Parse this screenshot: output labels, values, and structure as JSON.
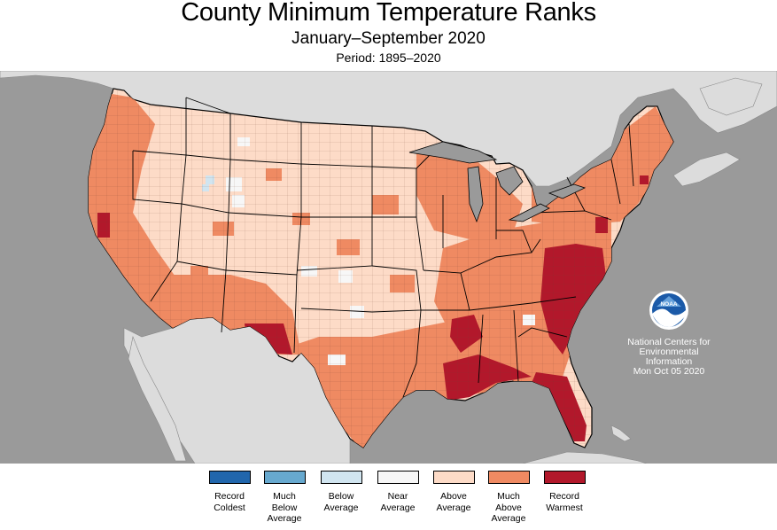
{
  "header": {
    "title": "County Minimum Temperature Ranks",
    "subtitle": "January–September 2020",
    "period": "Period: 1895–2020"
  },
  "logo": {
    "name": "noaa-logo",
    "text": "NOAA"
  },
  "credit": {
    "line1": "National Centers for",
    "line2": "Environmental",
    "line3": "Information",
    "line4": "Mon Oct 05 2020"
  },
  "colors": {
    "ocean": "#9a9a9a",
    "neighbor_land": "#dcdcdc",
    "state_border": "#000000",
    "county_border": "#555555"
  },
  "legend": [
    {
      "label": "Record\nColdest",
      "color": "#2166ac"
    },
    {
      "label": "Much\nBelow\nAverage",
      "color": "#67a9cf"
    },
    {
      "label": "Below\nAverage",
      "color": "#d1e5f0"
    },
    {
      "label": "Near\nAverage",
      "color": "#f7f7f7"
    },
    {
      "label": "Above\nAverage",
      "color": "#fddbc7"
    },
    {
      "label": "Much\nAbove\nAverage",
      "color": "#ef8a62"
    },
    {
      "label": "Record\nWarmest",
      "color": "#b2182b"
    }
  ]
}
